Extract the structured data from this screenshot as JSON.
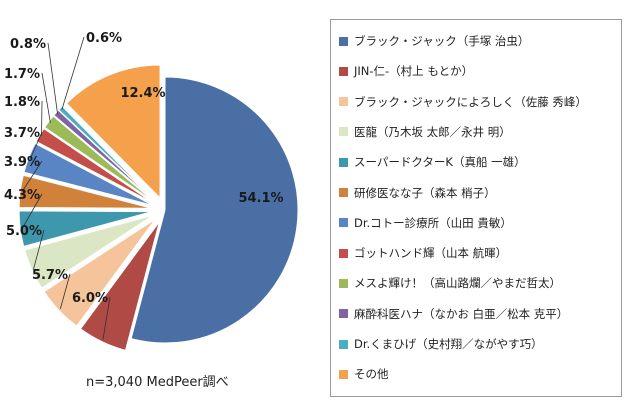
{
  "chart_data": {
    "type": "pie",
    "slices": [
      {
        "label": "ブラック・ジャック（手塚 治虫）",
        "value": 54.1,
        "value_label": "54.1%",
        "color": "#4a6fa5"
      },
      {
        "label": "JIN-仁-（村上 もとか）",
        "value": 6.0,
        "value_label": "6.0%",
        "color": "#b04a45"
      },
      {
        "label": "ブラック・ジャックによろしく（佐藤 秀峰）",
        "value": 5.7,
        "value_label": "5.7%",
        "color": "#f5c49a"
      },
      {
        "label": "医龍（乃木坂 太郎／永井 明）",
        "value": 5.0,
        "value_label": "5.0%",
        "color": "#dbe6c4"
      },
      {
        "label": "スーパードクターK（真船 一雄）",
        "value": 4.3,
        "value_label": "4.3%",
        "color": "#3d98ad"
      },
      {
        "label": "研修医なな子（森本 梢子）",
        "value": 3.9,
        "value_label": "3.9%",
        "color": "#d1823a"
      },
      {
        "label": "Dr.コトー診療所（山田 貴敏）",
        "value": 3.7,
        "value_label": "3.7%",
        "color": "#5a85c5"
      },
      {
        "label": "ゴットハンド輝（山本 航暉）",
        "value": 1.8,
        "value_label": "1.8%",
        "color": "#c44f4a"
      },
      {
        "label": "メスよ輝け！（高山路爛／やまだ哲太）",
        "value": 1.7,
        "value_label": "1.7%",
        "color": "#9bbb59"
      },
      {
        "label": "麻酔科医ハナ（なかお 白亜／松本 克平）",
        "value": 0.8,
        "value_label": "0.8%",
        "color": "#8064a2"
      },
      {
        "label": "Dr.くまひげ（史村翔／ながやす巧）",
        "value": 0.6,
        "value_label": "0.6%",
        "color": "#4bacc6"
      },
      {
        "label": "その他",
        "value": 12.4,
        "value_label": "12.4%",
        "color": "#f5a04a"
      }
    ]
  },
  "footnote": "n=3,040 MedPeer調べ"
}
